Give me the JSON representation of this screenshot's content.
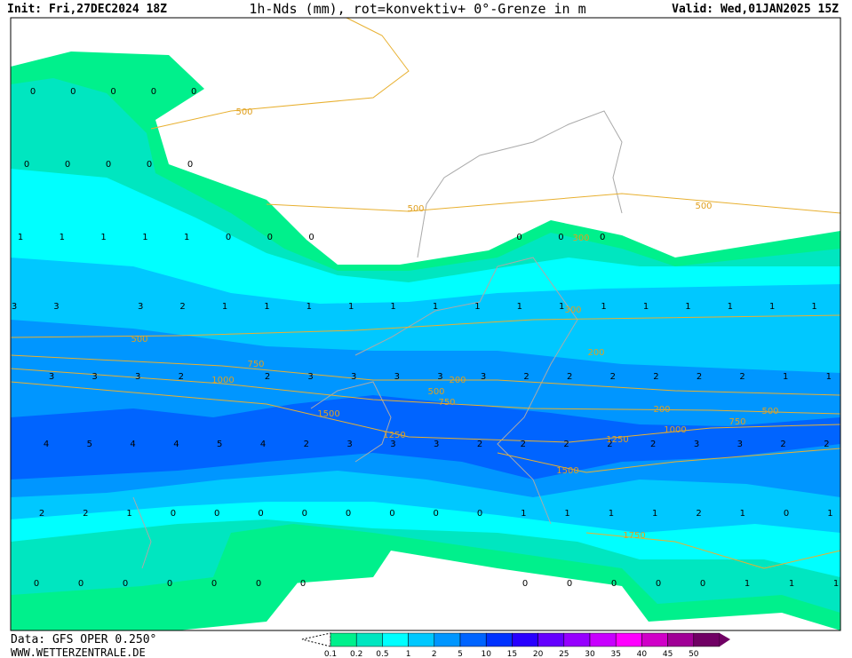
{
  "header": {
    "init": "Init: Fri,27DEC2024 18Z",
    "title": "1h-Nds (mm), rot=konvektiv+ 0°-Grenze in m",
    "valid": "Valid: Wed,01JAN2025 15Z"
  },
  "footer": {
    "data": "Data: GFS OPER 0.250°",
    "site": "WWW.WETTERZENTRALE.DE"
  },
  "legend": {
    "labels": [
      "0.1",
      "0.2",
      "0.5",
      "1",
      "2",
      "5",
      "10",
      "15",
      "20",
      "25",
      "30",
      "35",
      "40",
      "45",
      "50"
    ]
  },
  "point_labels": [
    [
      0,
      0,
      0,
      0,
      0
    ],
    [
      0,
      0,
      0,
      0,
      0
    ],
    [
      1,
      1,
      1,
      1,
      1,
      0,
      0,
      0,
      null,
      null,
      null,
      null,
      0,
      0,
      0
    ],
    [
      3,
      3,
      null,
      3,
      2,
      1,
      1,
      1,
      1,
      1,
      1,
      1,
      1,
      1,
      1,
      1,
      1,
      1,
      1,
      1
    ],
    [
      3,
      3,
      3,
      2,
      null,
      2,
      3,
      3,
      3,
      3,
      3,
      2,
      2,
      2,
      2,
      2,
      2,
      1,
      1
    ],
    [
      4,
      5,
      4,
      4,
      5,
      4,
      2,
      3,
      3,
      3,
      2,
      2,
      2,
      2,
      2,
      3,
      3,
      2,
      2
    ],
    [
      2,
      2,
      1,
      0,
      0,
      0,
      0,
      0,
      0,
      0,
      0,
      1,
      1,
      1,
      1,
      2,
      1,
      0,
      1
    ],
    [
      0,
      0,
      0,
      0,
      0,
      0,
      0,
      null,
      null,
      null,
      null,
      0,
      0,
      0,
      0,
      0,
      1,
      1,
      1
    ]
  ],
  "contour_labels": [
    500,
    500,
    500,
    300,
    300,
    500,
    750,
    1000,
    200,
    200,
    500,
    750,
    1500,
    1250,
    200,
    500,
    750,
    1000,
    1250,
    1500,
    1750
  ]
}
